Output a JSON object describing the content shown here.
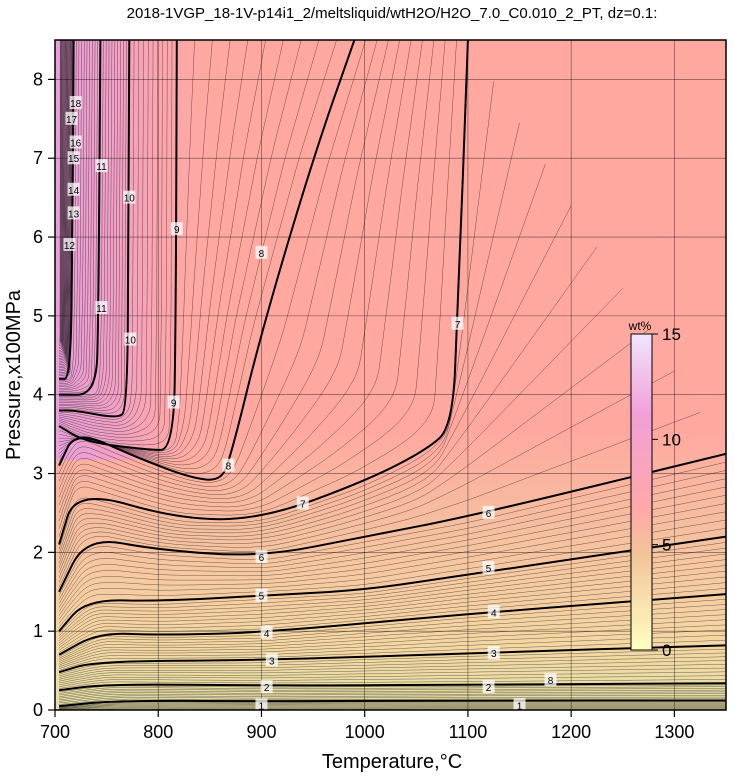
{
  "chart_data": {
    "type": "contour",
    "title": "2018-1VGP_18-1V-p14i1_2/meltsliquid/wtH2O/H2O_7.0_C0.010_2_PT, dz=0.1:",
    "xlabel": "Temperature,°C",
    "ylabel": "Pressure,x100MPa",
    "xlim": [
      700,
      1350
    ],
    "ylim": [
      0,
      8.5
    ],
    "x_ticks": [
      "700",
      "800",
      "900",
      "1000",
      "1100",
      "1200",
      "1300"
    ],
    "y_ticks": [
      "0",
      "1",
      "2",
      "3",
      "4",
      "5",
      "6",
      "7",
      "8"
    ],
    "grid": true,
    "colorbar": {
      "unit": "wt%",
      "range": [
        0,
        15
      ],
      "ticks": [
        "0",
        "5",
        "10",
        "15"
      ],
      "colors": [
        "#ffffc0",
        "#f2c59a",
        "#ffa8a8",
        "#f2a0d8",
        "#f0e6ff"
      ]
    },
    "contour_interval": 0.1,
    "major_contours": [
      {
        "level": 1,
        "points": [
          [
            704,
            0.05
          ],
          [
            760,
            0.12
          ],
          [
            900,
            0.11
          ],
          [
            1100,
            0.12
          ],
          [
            1350,
            0.12
          ]
        ]
      },
      {
        "level": 2,
        "points": [
          [
            704,
            0.25
          ],
          [
            750,
            0.33
          ],
          [
            900,
            0.31
          ],
          [
            1100,
            0.32
          ],
          [
            1350,
            0.34
          ]
        ]
      },
      {
        "level": 3,
        "points": [
          [
            704,
            0.48
          ],
          [
            740,
            0.62
          ],
          [
            900,
            0.63
          ],
          [
            1100,
            0.72
          ],
          [
            1350,
            0.82
          ]
        ]
      },
      {
        "level": 4,
        "points": [
          [
            704,
            0.7
          ],
          [
            742,
            0.98
          ],
          [
            800,
            0.95
          ],
          [
            900,
            0.98
          ],
          [
            1100,
            1.22
          ],
          [
            1350,
            1.47
          ]
        ]
      },
      {
        "level": 5,
        "points": [
          [
            704,
            1.0
          ],
          [
            730,
            1.4
          ],
          [
            800,
            1.38
          ],
          [
            900,
            1.45
          ],
          [
            1000,
            1.52
          ],
          [
            1100,
            1.72
          ],
          [
            1350,
            2.2
          ]
        ]
      },
      {
        "level": 6,
        "points": [
          [
            704,
            1.5
          ],
          [
            730,
            2.2
          ],
          [
            800,
            2.03
          ],
          [
            900,
            1.94
          ],
          [
            1000,
            2.2
          ],
          [
            1100,
            2.45
          ],
          [
            1350,
            3.25
          ]
        ]
      },
      {
        "level": 7,
        "points": [
          [
            704,
            2.1
          ],
          [
            720,
            2.8
          ],
          [
            820,
            2.42
          ],
          [
            900,
            2.42
          ],
          [
            1000,
            2.9
          ],
          [
            1060,
            3.3
          ],
          [
            1085,
            3.6
          ],
          [
            1090,
            5.0
          ],
          [
            1100,
            8.5
          ]
        ]
      },
      {
        "level": 8,
        "points": [
          [
            704,
            3.1
          ],
          [
            720,
            3.55
          ],
          [
            780,
            3.2
          ],
          [
            830,
            2.95
          ],
          [
            860,
            2.9
          ],
          [
            870,
            3.2
          ],
          [
            900,
            4.8
          ],
          [
            950,
            7.0
          ],
          [
            990,
            8.5
          ]
        ]
      },
      {
        "level": 9,
        "points": [
          [
            704,
            3.6
          ],
          [
            730,
            3.4
          ],
          [
            790,
            3.3
          ],
          [
            815,
            3.3
          ],
          [
            817,
            5.0
          ],
          [
            818,
            8.5
          ]
        ]
      },
      {
        "level": 10,
        "points": [
          [
            704,
            3.8
          ],
          [
            720,
            3.8
          ],
          [
            760,
            3.7
          ],
          [
            770,
            3.8
          ],
          [
            771,
            6.0
          ],
          [
            772,
            8.5
          ]
        ]
      },
      {
        "level": 11,
        "points": [
          [
            704,
            4.0
          ],
          [
            740,
            4.0
          ],
          [
            742,
            5.0
          ],
          [
            744,
            8.5
          ]
        ]
      },
      {
        "level": 12,
        "points": [
          [
            704,
            4.2
          ],
          [
            715,
            4.2
          ],
          [
            717,
            6.0
          ],
          [
            718,
            8.5
          ]
        ]
      }
    ],
    "annotations": [
      "1",
      "1",
      "2",
      "2",
      "3",
      "3",
      "4",
      "4",
      "5",
      "5",
      "6",
      "6",
      "7",
      "7",
      "8",
      "8",
      "8",
      "9",
      "9",
      "10",
      "10",
      "11",
      "11",
      "12",
      "13",
      "14",
      "15",
      "16",
      "17",
      "18"
    ]
  }
}
